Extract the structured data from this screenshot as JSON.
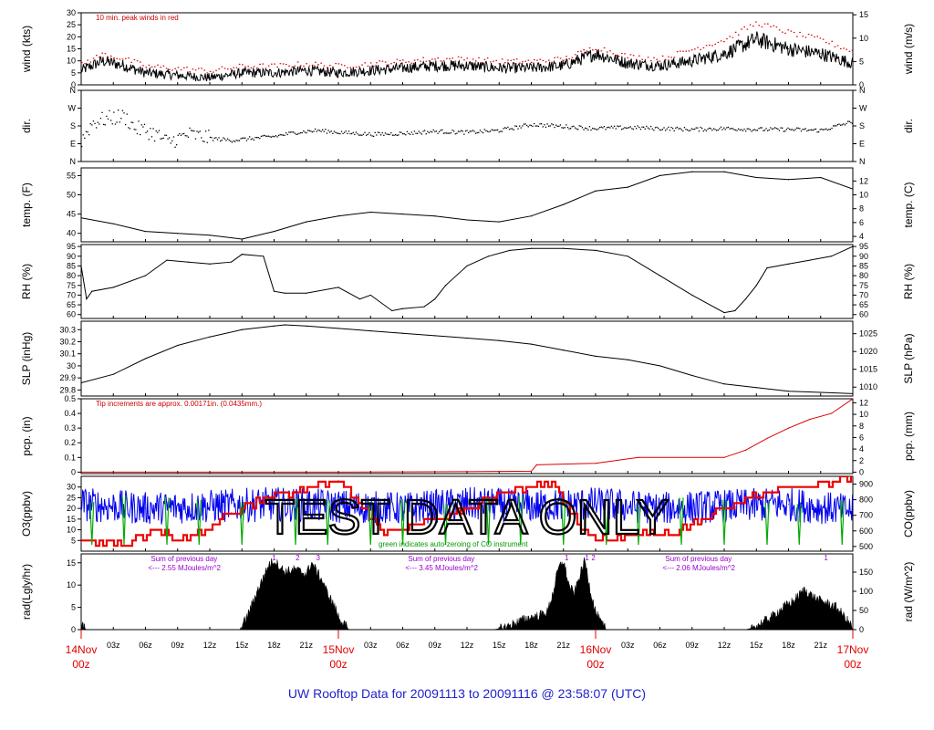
{
  "chart_data": {
    "type": "line",
    "title": "",
    "footer": "UW Rooftop Data for 20091113  to  20091116 @ 23:58:07  (UTC)",
    "watermark": "TEST   DATA   ONLY",
    "x_axis": {
      "hour_labels": [
        "03z",
        "06z",
        "09z",
        "12z",
        "15z",
        "18z",
        "21z"
      ],
      "day_labels": [
        {
          "day": "14Nov",
          "time": "00z"
        },
        {
          "day": "15Nov",
          "time": "00z"
        },
        {
          "day": "16Nov",
          "time": "00z"
        },
        {
          "day": "17Nov",
          "time": "00z"
        }
      ]
    },
    "panels": [
      {
        "id": "wind",
        "ylabel": "wind (kts)",
        "ylabel_right": "wind (m/s)",
        "ylim": [
          0,
          30
        ],
        "yticks": [
          0,
          5,
          10,
          15,
          20,
          25,
          30
        ],
        "right_ylim": [
          0,
          15.43
        ],
        "right_yticks": [
          0,
          5,
          10,
          15
        ],
        "note": "10 min. peak winds in red",
        "note_color": "#cc0000",
        "series": [
          {
            "color": "#000000",
            "style": "noisy-line",
            "x": [
              0,
              2,
              4,
              6,
              9,
              12,
              15,
              18,
              21,
              24,
              27,
              30,
              33,
              36,
              39,
              42,
              45,
              48,
              51,
              54,
              57,
              60,
              63,
              66,
              69,
              72
            ],
            "y": [
              6,
              10,
              8,
              5,
              4,
              3,
              5,
              5,
              6,
              5,
              6,
              7,
              8,
              8,
              7,
              7,
              8,
              13,
              9,
              8,
              10,
              13,
              19,
              15,
              13,
              9
            ]
          },
          {
            "color": "#dd0000",
            "style": "dots",
            "x": [
              0,
              2,
              4,
              6,
              9,
              12,
              15,
              18,
              21,
              24,
              27,
              30,
              33,
              36,
              39,
              42,
              45,
              48,
              51,
              54,
              57,
              60,
              63,
              66,
              69,
              72
            ],
            "y": [
              9,
              13,
              11,
              8,
              7,
              6,
              8,
              8,
              9,
              8,
              9,
              10,
              11,
              11,
              10,
              10,
              11,
              16,
              12,
              11,
              15,
              19,
              26,
              22,
              19,
              14
            ]
          }
        ]
      },
      {
        "id": "dir",
        "ylabel": "dir.",
        "ylabel_right": "dir.",
        "ylim": [
          0,
          360
        ],
        "ytick_values": [
          0,
          90,
          180,
          270,
          360
        ],
        "ytick_labels": [
          "N",
          "E",
          "S",
          "W",
          "N"
        ],
        "series": [
          {
            "color": "#000000",
            "style": "scatter",
            "x": [
              0,
              1,
              2,
              3,
              4,
              5,
              6,
              7,
              8,
              9,
              10,
              12,
              14,
              16,
              18,
              20,
              22,
              24,
              27,
              30,
              33,
              36,
              39,
              42,
              45,
              48,
              51,
              54,
              57,
              60,
              63,
              66,
              69,
              72
            ],
            "y": [
              110,
              200,
              215,
              225,
              230,
              170,
              160,
              140,
              100,
              120,
              140,
              120,
              110,
              120,
              130,
              150,
              160,
              150,
              140,
              145,
              155,
              150,
              160,
              190,
              180,
              170,
              175,
              170,
              165,
              170,
              165,
              165,
              160,
              205
            ]
          }
        ]
      },
      {
        "id": "temp",
        "ylabel": "temp. (F)",
        "ylabel_right": "temp. (C)",
        "ylim": [
          37.8,
          57
        ],
        "yticks": [
          40,
          45,
          50,
          55
        ],
        "right_ylim": [
          3.22,
          13.89
        ],
        "right_yticks": [
          4,
          6,
          8,
          10,
          12
        ],
        "series": [
          {
            "color": "#000000",
            "style": "line",
            "x": [
              0,
              3,
              6,
              9,
              12,
              15,
              18,
              21,
              24,
              27,
              30,
              33,
              36,
              39,
              42,
              45,
              48,
              51,
              54,
              57,
              60,
              63,
              66,
              69,
              72
            ],
            "y": [
              44,
              42.5,
              40.5,
              40,
              39.5,
              38.5,
              40.5,
              43,
              44.5,
              45.5,
              45,
              44.5,
              43.5,
              43,
              44.5,
              47.5,
              51,
              52,
              55,
              56,
              56,
              54.5,
              54,
              54.5,
              51.5
            ]
          }
        ]
      },
      {
        "id": "rh",
        "ylabel": "RH (%)",
        "ylabel_right": "RH (%)",
        "ylim": [
          58,
          96
        ],
        "yticks": [
          60,
          65,
          70,
          75,
          80,
          85,
          90,
          95
        ],
        "right_yticks": [
          60,
          65,
          70,
          75,
          80,
          85,
          90,
          95
        ],
        "series": [
          {
            "color": "#000000",
            "style": "line",
            "x": [
              0,
              0.5,
              1,
              3,
              6,
              8,
              10,
              12,
              14,
              15,
              17,
              18,
              19,
              21,
              24,
              26,
              27,
              29,
              30,
              32,
              33,
              34,
              36,
              38,
              40,
              42,
              45,
              48,
              51,
              54,
              57,
              60,
              61,
              62,
              63,
              64,
              66,
              68,
              70,
              72
            ],
            "y": [
              85,
              68,
              72,
              74,
              80,
              88,
              87,
              86,
              87,
              91,
              90,
              72,
              71,
              71,
              74,
              68,
              70,
              62,
              63,
              64,
              68,
              75,
              85,
              90,
              93,
              94,
              94,
              93,
              90,
              80,
              70,
              61,
              62,
              68,
              75,
              84,
              86,
              88,
              90,
              95
            ]
          }
        ]
      },
      {
        "id": "slp",
        "ylabel": "SLP (inHg)",
        "ylabel_right": "SLP (hPa)",
        "ylim": [
          29.75,
          30.37
        ],
        "yticks": [
          29.8,
          29.9,
          30.0,
          30.1,
          30.2,
          30.3
        ],
        "right_ylim": [
          1007.5,
          1028.5
        ],
        "right_yticks": [
          1010,
          1015,
          1020,
          1025
        ],
        "series": [
          {
            "color": "#000000",
            "style": "line",
            "x": [
              0,
              3,
              6,
              9,
              12,
              15,
              18,
              19,
              21,
              24,
              27,
              30,
              33,
              36,
              39,
              42,
              45,
              48,
              51,
              54,
              57,
              60,
              63,
              66,
              69,
              72
            ],
            "y": [
              29.86,
              29.93,
              30.06,
              30.17,
              30.24,
              30.3,
              30.33,
              30.34,
              30.33,
              30.31,
              30.29,
              30.27,
              30.25,
              30.23,
              30.21,
              30.18,
              30.13,
              30.08,
              30.05,
              30.0,
              29.92,
              29.85,
              29.82,
              29.79,
              29.78,
              29.77
            ]
          }
        ]
      },
      {
        "id": "pcp",
        "ylabel": "pcp. (in)",
        "ylabel_right": "pcp. (mm)",
        "ylim": [
          -0.01,
          0.5
        ],
        "yticks": [
          0.0,
          0.1,
          0.2,
          0.3,
          0.4,
          0.5
        ],
        "right_ylim": [
          -0.25,
          12.7
        ],
        "right_yticks": [
          0,
          2,
          4,
          6,
          8,
          10,
          12
        ],
        "note": "Tip increments are approx. 0.00171in. (0.0435mm.)",
        "note_color": "#cc0000",
        "series": [
          {
            "color": "#dd0000",
            "style": "line",
            "x": [
              0,
              24,
              36,
              42,
              42.5,
              48,
              50,
              52,
              60,
              62,
              64,
              66,
              68,
              70,
              72
            ],
            "y": [
              0,
              0,
              0.003,
              0.006,
              0.05,
              0.06,
              0.08,
              0.1,
              0.1,
              0.15,
              0.23,
              0.3,
              0.36,
              0.4,
              0.5
            ]
          }
        ]
      },
      {
        "id": "o3co",
        "ylabel": "O3(ppbv)",
        "ylabel_color": "#dd0000",
        "ylabel_right": "CO(ppbv)",
        "ylabel_right_color": "#0000dd",
        "ylim": [
          0,
          35
        ],
        "yticks": [
          5,
          10,
          15,
          20,
          25,
          30
        ],
        "right_ylim": [
          470,
          950
        ],
        "right_yticks": [
          500,
          600,
          700,
          800,
          900
        ],
        "note": "green indicates auto-zeroing of CO instrument",
        "note_color": "#009900",
        "series": [
          {
            "color": "#0000ee",
            "style": "noisy-line",
            "x": [
              0,
              6,
              12,
              18,
              24,
              30,
              36,
              42,
              48,
              54,
              60,
              66,
              72
            ],
            "y": [
              22,
              20,
              21,
              22,
              21,
              20,
              22,
              21,
              22,
              20,
              21,
              22,
              19
            ]
          },
          {
            "color": "#ee0000",
            "style": "steps",
            "x": [
              0,
              4,
              7,
              10,
              14,
              17,
              20,
              22,
              24,
              28,
              32,
              36,
              40,
              42,
              44,
              46,
              48,
              52,
              56,
              59,
              62,
              66,
              70,
              72
            ],
            "y": [
              4,
              3,
              10,
              5,
              18,
              25,
              28,
              30,
              33,
              10,
              13,
              20,
              28,
              30,
              32,
              15,
              5,
              8,
              10,
              18,
              24,
              30,
              32,
              34
            ]
          },
          {
            "color": "#00aa00",
            "style": "spikes",
            "x": [
              1,
              4,
              8,
              11,
              15,
              20,
              23,
              27,
              30,
              34,
              38,
              41,
              45,
              49,
              52,
              56,
              60,
              64,
              67,
              71
            ],
            "y": [
              23,
              26,
              25,
              24,
              23,
              25,
              24,
              23,
              24,
              22,
              25,
              26,
              24,
              23,
              22,
              25,
              24,
              23,
              22,
              24
            ]
          }
        ]
      },
      {
        "id": "rad",
        "ylabel": "rad(Lgly/hr)",
        "ylabel_right": "rad (W/m^2)",
        "ylim": [
          0,
          17
        ],
        "yticks": [
          0,
          5,
          10,
          15
        ],
        "right_ylim": [
          0,
          197.6
        ],
        "right_yticks": [
          0,
          50,
          100,
          150
        ],
        "notes": [
          {
            "line1": "Sum of previous day",
            "line2": "<--- 2.55 MJoules/m^2",
            "x": 6.5
          },
          {
            "line1": "Sum of previous day",
            "line2": "<--- 3.45 MJoules/m^2",
            "x": 30.5
          },
          {
            "line1": "Sum of previous day",
            "line2": "<--- 2.06 MJoules/m^2",
            "x": 54.5
          }
        ],
        "note_color": "#9900cc",
        "markers": [
          {
            "label": "1",
            "x": 18
          },
          {
            "label": "2",
            "x": 20.2
          },
          {
            "label": "3",
            "x": 22.1
          },
          {
            "label": "1",
            "x": 45.3
          },
          {
            "label": "1",
            "x": 47.2
          },
          {
            "label": "2",
            "x": 47.8
          },
          {
            "label": "1",
            "x": 69.5
          }
        ],
        "series": [
          {
            "color": "#000000",
            "style": "filled",
            "x": [
              0,
              0.2,
              0.5,
              14.8,
              15.5,
              16.5,
              17.5,
              18,
              19,
              20,
              21,
              21.5,
              22,
              22.5,
              23,
              23.5,
              24,
              24.4,
              24.8,
              25,
              38.5,
              39.5,
              40.5,
              41.5,
              42.5,
              43.5,
              44,
              44.5,
              45,
              45.5,
              46,
              46.5,
              47,
              47.5,
              48,
              48.5,
              49,
              62,
              62.5,
              63.5,
              64.5,
              65.5,
              66.5,
              67.5,
              68.5,
              69.5,
              70.5,
              71.5,
              72
            ],
            "y": [
              1.5,
              0.5,
              0,
              0,
              3,
              9,
              14.5,
              15.5,
              13,
              13.5,
              12.5,
              15,
              13,
              11,
              8,
              6,
              3,
              1.5,
              0.5,
              0,
              0,
              0.5,
              1.5,
              2.5,
              3,
              4,
              8,
              13.5,
              15.5,
              10,
              8,
              12,
              15.5,
              9,
              4,
              1.5,
              0,
              0,
              0.3,
              1.5,
              3,
              5,
              6.5,
              9,
              7,
              6,
              5,
              2,
              0.5
            ]
          }
        ]
      }
    ]
  }
}
